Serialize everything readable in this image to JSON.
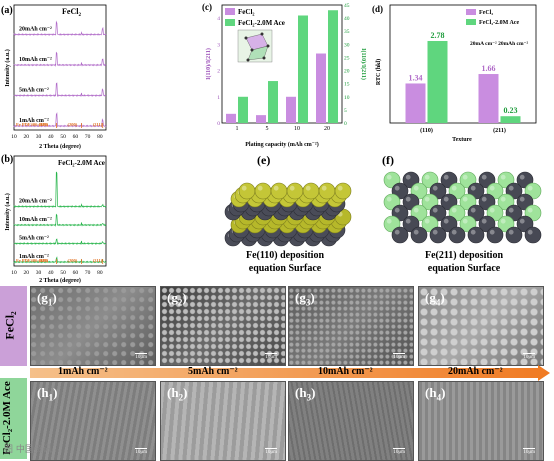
{
  "panels": {
    "a": {
      "label": "(a)",
      "title": "FeCl",
      "title_sub": "2",
      "ylabel": "Intensity (a.u.)",
      "xlabel": "2 Theta (degree)",
      "traces": [
        "20mAh cm⁻²",
        "10mAh cm⁻²",
        "5mAh cm⁻²",
        "1mAh cm⁻²"
      ],
      "ref": "Fe PDF#06-0696",
      "hkl": [
        "(110)",
        "(200)",
        "(211)"
      ],
      "xticks": [
        "10",
        "20",
        "30",
        "40",
        "50",
        "60",
        "70",
        "80"
      ]
    },
    "b": {
      "label": "(b)",
      "title": "FeCl₂-2.0M Ace",
      "ylabel": "Intensity (a.u.)",
      "xlabel": "2 Theta (degree)",
      "traces": [
        "20mAh cm⁻²",
        "10mAh cm⁻²",
        "5mAh cm⁻²",
        "1mAh cm⁻²"
      ],
      "ref": "Fe PDF#06-0696",
      "hkl": [
        "(110)",
        "(200)",
        "(211)"
      ],
      "xticks": [
        "10",
        "20",
        "30",
        "40",
        "50",
        "60",
        "70",
        "80"
      ]
    },
    "c": {
      "label": "(c)",
      "xlabel": "Plating capacity (mAh cm⁻²)",
      "ylabel_left": "I(110)/I(211)",
      "ylabel_right": "I(110)/I(211)",
      "legend": [
        "FeCl₂",
        "FeCl₂-2.0M Ace"
      ]
    },
    "d": {
      "label": "(d)",
      "ylabel": "RTC (hkl)",
      "xlabel": "Texture",
      "note": "20mA cm⁻² 20mAh cm⁻²",
      "legend": [
        "FeCl₂",
        "FeCl₂-2.0M Ace"
      ]
    },
    "e": {
      "label": "(e)",
      "caption": [
        "Fe(110) deposition",
        "equation Surface"
      ]
    },
    "f": {
      "label": "(f)",
      "caption": [
        "Fe(211) deposition",
        "equation Surface"
      ]
    }
  },
  "chart_data": [
    {
      "type": "bar",
      "panel": "c",
      "categories": [
        "1",
        "5",
        "10",
        "20"
      ],
      "series": [
        {
          "name": "FeCl₂",
          "axis": "left",
          "values": [
            0.35,
            0.3,
            1.0,
            2.65
          ]
        },
        {
          "name": "FeCl₂-2.0M Ace",
          "axis": "right",
          "values": [
            10,
            16,
            41,
            43
          ]
        }
      ],
      "ylim_left": [
        0,
        4.5
      ],
      "ylim_right": [
        0,
        45
      ],
      "yticks_left": [
        "0",
        "1",
        "2",
        "3",
        "4"
      ],
      "yticks_right": [
        "0",
        "5",
        "10",
        "15",
        "20",
        "25",
        "30",
        "35",
        "40",
        "45"
      ]
    },
    {
      "type": "bar",
      "panel": "d",
      "categories": [
        "(110)",
        "(211)"
      ],
      "series": [
        {
          "name": "FeCl₂",
          "values": [
            1.34,
            1.66
          ]
        },
        {
          "name": "FeCl₂-2.0M Ace",
          "values": [
            2.78,
            0.23
          ]
        }
      ],
      "ylim": [
        0,
        4
      ]
    }
  ],
  "sem": {
    "row_labels": [
      "FeCl₂",
      "FeCl₂-2.0M Ace"
    ],
    "arrow_labels": [
      "1mAh cm⁻²",
      "5mAh cm⁻²",
      "10mAh cm⁻²",
      "20mAh cm⁻²"
    ],
    "scale": "10μm",
    "g": [
      {
        "l": "g",
        "s": "1"
      },
      {
        "l": "g",
        "s": "2"
      },
      {
        "l": "g",
        "s": "3"
      },
      {
        "l": "g",
        "s": "4"
      }
    ],
    "h": [
      {
        "l": "h",
        "s": "1"
      },
      {
        "l": "h",
        "s": "2"
      },
      {
        "l": "h",
        "s": "3"
      },
      {
        "l": "h",
        "s": "4"
      }
    ]
  },
  "watermark": "图 中国资讯"
}
